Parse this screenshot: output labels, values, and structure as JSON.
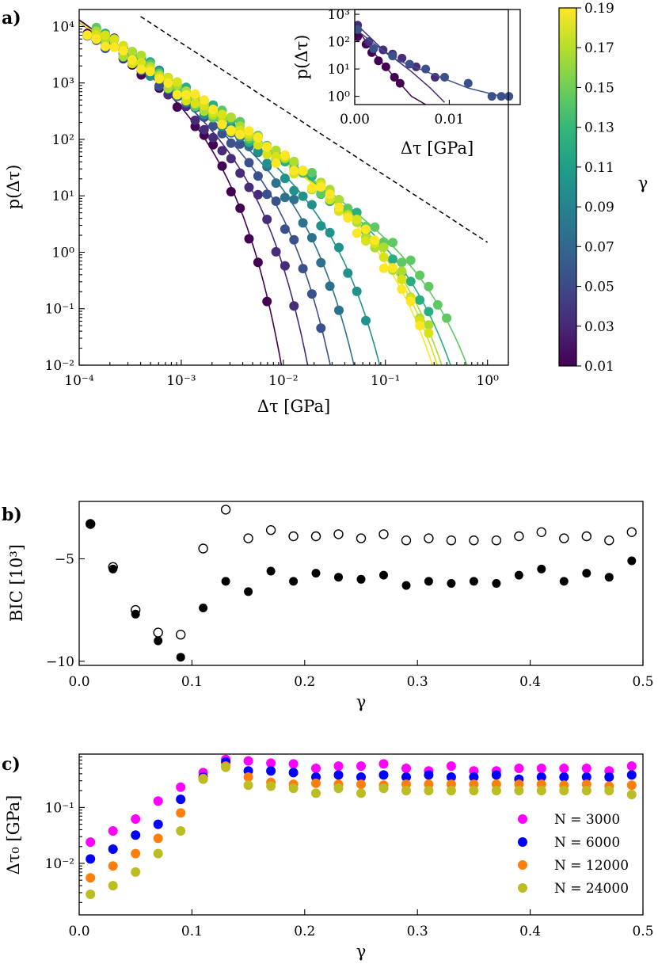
{
  "panels": {
    "a": {
      "label": "a)"
    },
    "b": {
      "label": "b)"
    },
    "c": {
      "label": "c)"
    }
  },
  "chart_data": [
    {
      "id": "a",
      "type": "scatter",
      "scale": "log-log",
      "title": "",
      "xlabel": "Δτ [GPa]",
      "ylabel": "p(Δτ)",
      "xlim": [
        0.0001,
        1.6
      ],
      "ylim": [
        0.01,
        20000
      ],
      "x_ticks": [
        {
          "v": 0.0001,
          "t": "10⁻⁴"
        },
        {
          "v": 0.001,
          "t": "10⁻³"
        },
        {
          "v": 0.01,
          "t": "10⁻²"
        },
        {
          "v": 0.1,
          "t": "10⁻¹"
        },
        {
          "v": 1,
          "t": "10⁰"
        }
      ],
      "y_ticks": [
        {
          "v": 0.01,
          "t": "10⁻²"
        },
        {
          "v": 0.1,
          "t": "10⁻¹"
        },
        {
          "v": 1,
          "t": "10⁰"
        },
        {
          "v": 10,
          "t": "10¹"
        },
        {
          "v": 100,
          "t": "10²"
        },
        {
          "v": 1000,
          "t": "10³"
        },
        {
          "v": 10000,
          "t": "10⁴"
        }
      ],
      "reference_line": {
        "style": "dashed",
        "x": [
          0.0004,
          1.0
        ],
        "y": [
          15000,
          1.5
        ]
      },
      "colorbar": {
        "label": "γ",
        "range": [
          0.01,
          0.19
        ],
        "colormap": "viridis",
        "ticks": [
          "0.01",
          "0.03",
          "0.05",
          "0.07",
          "0.09",
          "0.11",
          "0.13",
          "0.15",
          "0.17",
          "0.19"
        ]
      },
      "series": [
        {
          "gamma": 0.01,
          "color": "#440154",
          "amp": 9000,
          "x0": 0.0011
        },
        {
          "gamma": 0.03,
          "color": "#472c7a",
          "amp": 8000,
          "x0": 0.0022
        },
        {
          "gamma": 0.05,
          "color": "#3b518b",
          "amp": 7500,
          "x0": 0.004
        },
        {
          "gamma": 0.07,
          "color": "#2c718e",
          "amp": 7500,
          "x0": 0.0075
        },
        {
          "gamma": 0.09,
          "color": "#21918c",
          "amp": 7500,
          "x0": 0.015
        },
        {
          "gamma": 0.11,
          "color": "#28ae80",
          "amp": 7500,
          "x0": 0.11
        },
        {
          "gamma": 0.13,
          "color": "#5ec962",
          "amp": 7500,
          "x0": 0.18
        },
        {
          "gamma": 0.15,
          "color": "#addc30",
          "amp": 7500,
          "x0": 0.085
        },
        {
          "gamma": 0.17,
          "color": "#d8e219",
          "amp": 7500,
          "x0": 0.075
        },
        {
          "gamma": 0.19,
          "color": "#fde725",
          "amp": 7500,
          "x0": 0.065
        }
      ],
      "model": "p = amp · x^-1.2 · exp(-x/x0)"
    },
    {
      "id": "a-inset",
      "type": "scatter",
      "scale": "lin-log",
      "xlabel": "Δτ [GPa]",
      "ylabel": "p(Δτ)",
      "xlim": [
        0,
        0.0175
      ],
      "ylim": [
        0.5,
        1500
      ],
      "x_ticks": [
        {
          "v": 0,
          "t": "0.00"
        },
        {
          "v": 0.01,
          "t": "0.01"
        }
      ],
      "y_ticks": [
        {
          "v": 1,
          "t": "10⁰"
        },
        {
          "v": 10,
          "t": "10¹"
        },
        {
          "v": 100,
          "t": "10²"
        },
        {
          "v": 1000,
          "t": "10³"
        }
      ],
      "series": [
        {
          "gamma": 0.01,
          "color": "#440154",
          "points": [
            [
              0.0003,
              150
            ],
            [
              0.0012,
              80
            ],
            [
              0.0018,
              40
            ],
            [
              0.0025,
              20
            ],
            [
              0.0033,
              12
            ],
            [
              0.0042,
              5
            ],
            [
              0.0048,
              3
            ]
          ],
          "fit": [
            [
              0,
              400
            ],
            [
              0.002,
              40
            ],
            [
              0.004,
              6
            ],
            [
              0.006,
              1
            ],
            [
              0.0075,
              0.5
            ]
          ]
        },
        {
          "gamma": 0.03,
          "color": "#472c7a",
          "points": [
            [
              0.0003,
              400
            ],
            [
              0.0015,
              100
            ],
            [
              0.003,
              50
            ],
            [
              0.004,
              35
            ],
            [
              0.005,
              25
            ],
            [
              0.0065,
              12
            ],
            [
              0.0085,
              5
            ]
          ],
          "fit": [
            [
              0,
              500
            ],
            [
              0.003,
              50
            ],
            [
              0.006,
              8
            ],
            [
              0.008,
              2
            ],
            [
              0.0095,
              0.6
            ]
          ]
        },
        {
          "gamma": 0.05,
          "color": "#3b518b",
          "points": [
            [
              0.0003,
              280
            ],
            [
              0.002,
              55
            ],
            [
              0.004,
              30
            ],
            [
              0.0058,
              15
            ],
            [
              0.0075,
              10
            ],
            [
              0.0095,
              5
            ],
            [
              0.012,
              3
            ],
            [
              0.0145,
              1
            ],
            [
              0.0155,
              1
            ],
            [
              0.0163,
              1
            ]
          ],
          "fit": [
            [
              0,
              300
            ],
            [
              0.004,
              25
            ],
            [
              0.008,
              7
            ],
            [
              0.012,
              2
            ],
            [
              0.0155,
              1
            ]
          ]
        }
      ]
    },
    {
      "id": "b",
      "type": "scatter",
      "title": "",
      "xlabel": "γ",
      "ylabel": "BIC [10³]",
      "xlim": [
        0,
        0.5
      ],
      "ylim": [
        -10.2,
        -2.2
      ],
      "x_ticks": [
        "0.0",
        "0.1",
        "0.2",
        "0.3",
        "0.4",
        "0.5"
      ],
      "y_ticks": [
        {
          "v": -5,
          "t": "−5"
        },
        {
          "v": -10,
          "t": "−10"
        }
      ],
      "x": [
        0.01,
        0.03,
        0.05,
        0.07,
        0.09,
        0.11,
        0.13,
        0.15,
        0.17,
        0.19,
        0.21,
        0.23,
        0.25,
        0.27,
        0.29,
        0.31,
        0.33,
        0.35,
        0.37,
        0.39,
        0.41,
        0.43,
        0.45,
        0.47,
        0.49
      ],
      "series": [
        {
          "name": "open",
          "marker": "open-circle",
          "values": [
            -3.3,
            -5.4,
            -7.5,
            -8.6,
            -8.7,
            -4.5,
            -2.6,
            -4.0,
            -3.6,
            -3.9,
            -3.9,
            -3.8,
            -4.0,
            -3.8,
            -4.1,
            -4.0,
            -4.1,
            -4.1,
            -4.1,
            -3.9,
            -3.7,
            -4.0,
            -3.9,
            -4.1,
            -3.7
          ]
        },
        {
          "name": "filled",
          "marker": "filled-circle",
          "values": [
            -3.3,
            -5.5,
            -7.7,
            -9.0,
            -9.8,
            -7.4,
            -6.1,
            -6.6,
            -5.6,
            -6.1,
            -5.7,
            -5.9,
            -6.0,
            -5.8,
            -6.3,
            -6.1,
            -6.2,
            -6.1,
            -6.2,
            -5.8,
            -5.5,
            -6.1,
            -5.7,
            -5.9,
            -5.1
          ]
        }
      ]
    },
    {
      "id": "c",
      "type": "scatter",
      "scale": "lin-log",
      "title": "",
      "xlabel": "γ",
      "ylabel": "Δτ₀ [GPa]",
      "xlim": [
        0,
        0.5
      ],
      "ylim": [
        0.0012,
        0.9
      ],
      "x_ticks": [
        "0.0",
        "0.1",
        "0.2",
        "0.3",
        "0.4",
        "0.5"
      ],
      "y_ticks": [
        {
          "v": 0.01,
          "t": "10⁻²"
        },
        {
          "v": 0.1,
          "t": "10⁻¹"
        }
      ],
      "legend": {
        "position": "lower-right"
      },
      "x": [
        0.01,
        0.03,
        0.05,
        0.07,
        0.09,
        0.11,
        0.13,
        0.15,
        0.17,
        0.19,
        0.21,
        0.23,
        0.25,
        0.27,
        0.29,
        0.31,
        0.33,
        0.35,
        0.37,
        0.39,
        0.41,
        0.43,
        0.45,
        0.47,
        0.49
      ],
      "series": [
        {
          "name": "N = 3000",
          "color": "#ff00ff",
          "values": [
            0.024,
            0.038,
            0.062,
            0.13,
            0.23,
            0.42,
            0.72,
            0.68,
            0.62,
            0.6,
            0.5,
            0.55,
            0.55,
            0.6,
            0.5,
            0.45,
            0.55,
            0.45,
            0.45,
            0.5,
            0.5,
            0.5,
            0.5,
            0.45,
            0.55
          ]
        },
        {
          "name": "N = 6000",
          "color": "#0000ff",
          "values": [
            0.012,
            0.018,
            0.032,
            0.05,
            0.14,
            0.35,
            0.65,
            0.45,
            0.45,
            0.42,
            0.35,
            0.38,
            0.35,
            0.38,
            0.35,
            0.38,
            0.35,
            0.35,
            0.38,
            0.32,
            0.35,
            0.35,
            0.35,
            0.35,
            0.38
          ]
        },
        {
          "name": "N = 12000",
          "color": "#ff7f0e",
          "values": [
            0.0055,
            0.009,
            0.015,
            0.028,
            0.08,
            0.33,
            0.55,
            0.35,
            0.28,
            0.26,
            0.27,
            0.26,
            0.26,
            0.25,
            0.26,
            0.26,
            0.26,
            0.26,
            0.26,
            0.26,
            0.26,
            0.25,
            0.26,
            0.24,
            0.25
          ]
        },
        {
          "name": "N = 24000",
          "color": "#bcbd22",
          "values": [
            0.0028,
            0.004,
            0.007,
            0.015,
            0.038,
            0.32,
            0.52,
            0.25,
            0.24,
            0.22,
            0.18,
            0.22,
            0.18,
            0.22,
            0.2,
            0.2,
            0.2,
            0.2,
            0.2,
            0.2,
            0.2,
            0.2,
            0.2,
            0.2,
            0.17
          ]
        }
      ]
    }
  ]
}
